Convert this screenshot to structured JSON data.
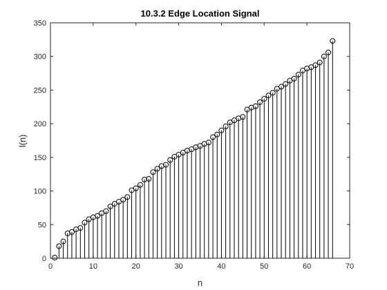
{
  "chart_data": {
    "type": "stem",
    "title": "10.3.2 Edge Location Signal",
    "xlabel": "n",
    "ylabel": "l(n)",
    "xlim": [
      0,
      70
    ],
    "ylim": [
      0,
      350
    ],
    "xticks": [
      0,
      10,
      20,
      30,
      40,
      50,
      60,
      70
    ],
    "yticks": [
      0,
      50,
      100,
      150,
      200,
      250,
      300,
      350
    ],
    "grid": false,
    "marker": "circle-open",
    "colors": {
      "stem": "#000000",
      "axes": "#262626",
      "background": "#ffffff"
    },
    "x": [
      1,
      2,
      3,
      4,
      5,
      6,
      7,
      8,
      9,
      10,
      11,
      12,
      13,
      14,
      15,
      16,
      17,
      18,
      19,
      20,
      21,
      22,
      23,
      24,
      25,
      26,
      27,
      28,
      29,
      30,
      31,
      32,
      33,
      34,
      35,
      36,
      37,
      38,
      39,
      40,
      41,
      42,
      43,
      44,
      45,
      46,
      47,
      48,
      49,
      50,
      51,
      52,
      53,
      54,
      55,
      56,
      57,
      58,
      59,
      60,
      61,
      62,
      63,
      64,
      65,
      66
    ],
    "values": [
      1,
      18,
      25,
      37,
      39,
      43,
      45,
      53,
      58,
      61,
      63,
      67,
      70,
      77,
      81,
      84,
      87,
      91,
      101,
      104,
      109,
      117,
      118,
      128,
      133,
      137,
      139,
      146,
      151,
      154,
      157,
      160,
      162,
      165,
      167,
      170,
      172,
      180,
      184,
      190,
      196,
      202,
      205,
      208,
      210,
      221,
      224,
      226,
      232,
      237,
      242,
      246,
      252,
      255,
      259,
      264,
      267,
      273,
      279,
      282,
      284,
      287,
      291,
      300,
      306,
      323
    ]
  }
}
